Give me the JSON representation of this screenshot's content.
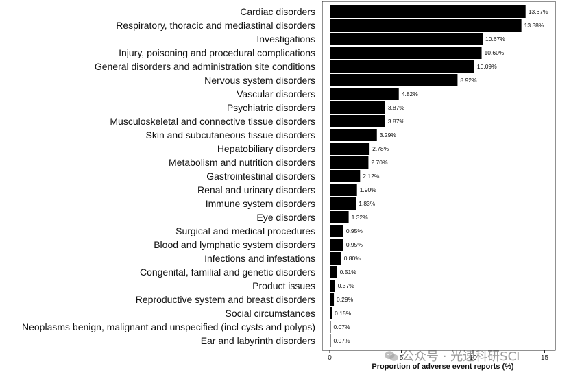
{
  "chart_data": {
    "type": "bar",
    "orientation": "horizontal",
    "categories": [
      "Cardiac disorders",
      "Respiratory, thoracic and mediastinal disorders",
      "Investigations",
      "Injury, poisoning and procedural complications",
      "General disorders and administration site conditions",
      "Nervous system disorders",
      "Vascular disorders",
      "Psychiatric disorders",
      "Musculoskeletal and connective tissue disorders",
      "Skin and subcutaneous tissue disorders",
      "Hepatobiliary disorders",
      "Metabolism and nutrition disorders",
      "Gastrointestinal disorders",
      "Renal and urinary disorders",
      "Immune system disorders",
      "Eye disorders",
      "Surgical and medical procedures",
      "Blood and lymphatic system disorders",
      "Infections and infestations",
      "Congenital, familial and genetic disorders",
      "Product issues",
      "Reproductive system and breast disorders",
      "Social circumstances",
      "Neoplasms benign, malignant and unspecified (incl cysts and polyps)",
      "Ear and labyrinth disorders"
    ],
    "values": [
      13.67,
      13.38,
      10.67,
      10.6,
      10.09,
      8.92,
      4.82,
      3.87,
      3.87,
      3.29,
      2.78,
      2.7,
      2.12,
      1.9,
      1.83,
      1.32,
      0.95,
      0.95,
      0.8,
      0.51,
      0.37,
      0.29,
      0.15,
      0.07,
      0.07
    ],
    "value_labels": [
      "13.67%",
      "13.38%",
      "10.67%",
      "10.60%",
      "10.09%",
      "8.92%",
      "4.82%",
      "3.87%",
      "3.87%",
      "3.29%",
      "2.78%",
      "2.70%",
      "2.12%",
      "1.90%",
      "1.83%",
      "1.32%",
      "0.95%",
      "0.95%",
      "0.80%",
      "0.51%",
      "0.37%",
      "0.29%",
      "0.15%",
      "0.07%",
      "0.07%"
    ],
    "xlabel": "Proportion of adverse event reports (%)",
    "ylabel": "",
    "title": "",
    "xlim": [
      0,
      15
    ],
    "xticks": [
      0,
      5,
      10,
      15
    ],
    "bar_color": "#000000",
    "grid": false,
    "legend": "none"
  },
  "watermark": {
    "text": "公众号 · 光速科研SCI",
    "icon": "wechat-icon"
  }
}
